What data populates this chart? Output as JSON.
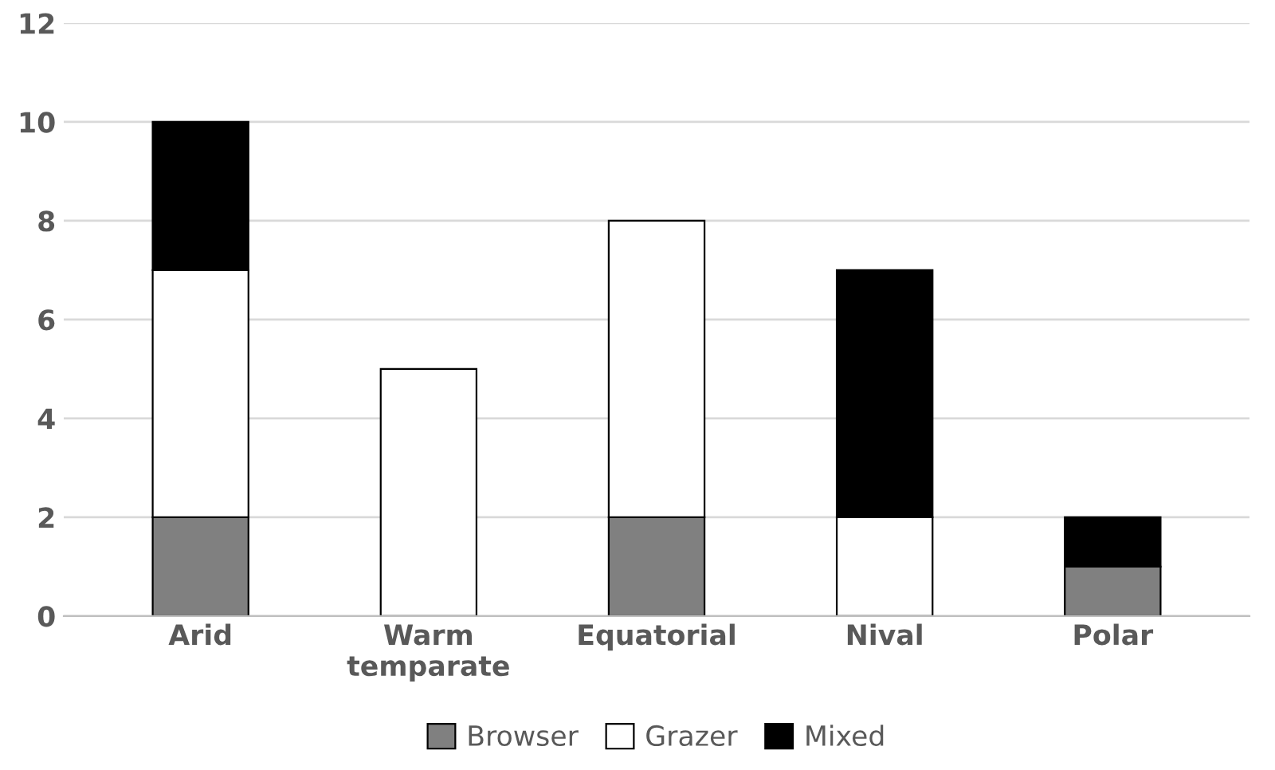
{
  "chart_data": {
    "type": "bar",
    "stacked": true,
    "categories": [
      "Arid",
      "Warm\ntemparate",
      "Equatorial",
      "Nival",
      "Polar"
    ],
    "series": [
      {
        "name": "Browser",
        "color": "#808080",
        "values": [
          2,
          0,
          2,
          0,
          1
        ]
      },
      {
        "name": "Grazer",
        "color": "#ffffff",
        "values": [
          5,
          5,
          6,
          2,
          0
        ]
      },
      {
        "name": "Mixed",
        "color": "#000000",
        "values": [
          3,
          0,
          0,
          5,
          1
        ]
      }
    ],
    "ylim": [
      0,
      12
    ],
    "yticks": [
      0,
      2,
      4,
      6,
      8,
      10,
      12
    ],
    "grid": "y",
    "legend": "bottom"
  }
}
